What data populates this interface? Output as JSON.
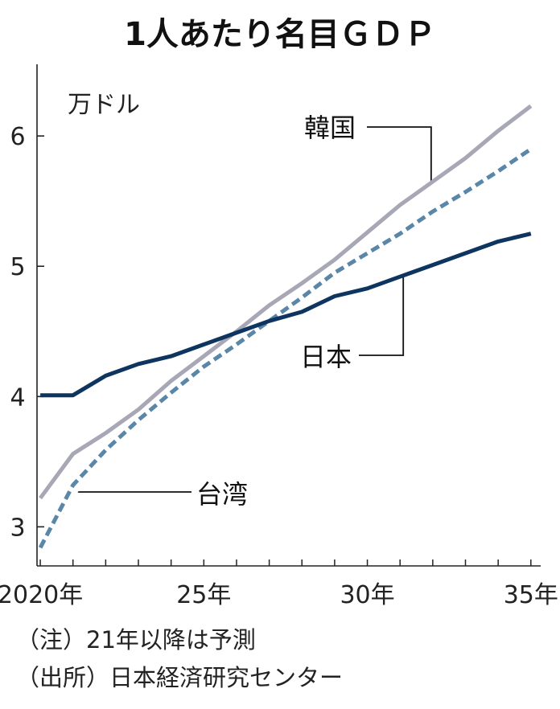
{
  "chart_data": {
    "type": "line",
    "title": "1人あたり名目ＧＤＰ",
    "unit": "万ドル",
    "x": [
      2020,
      2021,
      2022,
      2023,
      2024,
      2025,
      2026,
      2027,
      2028,
      2029,
      2030,
      2031,
      2032,
      2033,
      2034,
      2035
    ],
    "xticks": [
      {
        "value": 2020,
        "label": "2020年"
      },
      {
        "value": 2025,
        "label": "25年"
      },
      {
        "value": 2030,
        "label": "30年"
      },
      {
        "value": 2035,
        "label": "35年"
      }
    ],
    "yticks": [
      {
        "value": 3,
        "label": "3"
      },
      {
        "value": 4,
        "label": "4"
      },
      {
        "value": 5,
        "label": "5"
      },
      {
        "value": 6,
        "label": "6"
      }
    ],
    "xlim": [
      2019.9,
      2035.3
    ],
    "ylim": [
      2.7,
      6.55
    ],
    "series": [
      {
        "name": "韓国",
        "color": "#a7a7b5",
        "style": "solid",
        "values": [
          3.22,
          3.56,
          3.72,
          3.9,
          4.12,
          4.31,
          4.5,
          4.7,
          4.87,
          5.05,
          5.26,
          5.47,
          5.65,
          5.83,
          6.04,
          6.23
        ]
      },
      {
        "name": "台湾",
        "color": "#5a86a8",
        "style": "dashed",
        "values": [
          2.84,
          3.32,
          3.59,
          3.82,
          4.03,
          4.23,
          4.4,
          4.58,
          4.76,
          4.95,
          5.1,
          5.25,
          5.42,
          5.57,
          5.73,
          5.9
        ]
      },
      {
        "name": "日本",
        "color": "#0e3560",
        "style": "solid",
        "values": [
          4.01,
          4.01,
          4.16,
          4.25,
          4.31,
          4.4,
          4.49,
          4.58,
          4.65,
          4.77,
          4.83,
          4.92,
          5.01,
          5.1,
          5.19,
          5.25
        ]
      }
    ],
    "labels": [
      {
        "series": "韓国",
        "text": "韓国"
      },
      {
        "series": "台湾",
        "text": "台湾"
      },
      {
        "series": "日本",
        "text": "日本"
      }
    ]
  },
  "notes": [
    "（注）21年以降は予測",
    "（出所）日本経済研究センター"
  ]
}
